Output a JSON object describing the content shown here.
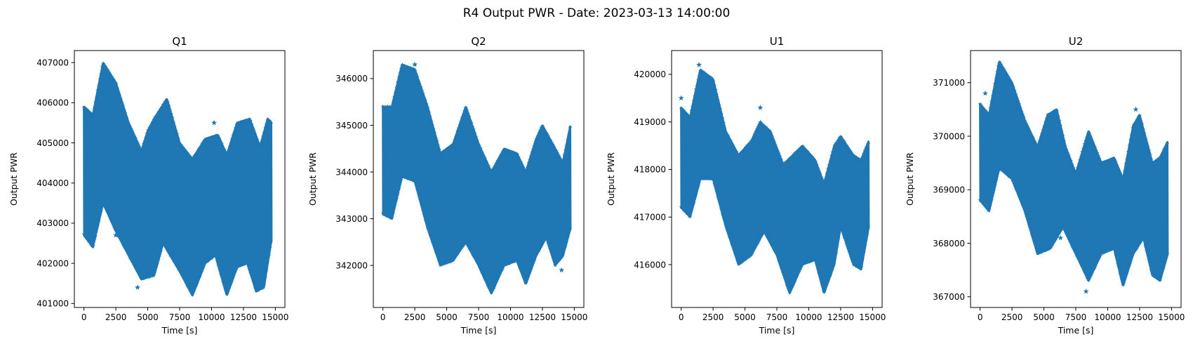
{
  "figure": {
    "title": "R4 Output PWR - Date: 2023-03-13 14:00:00",
    "marker_color": "#1f77b4"
  },
  "chart_data": [
    {
      "type": "scatter",
      "title": "Q1",
      "xlabel": "Time [s]",
      "ylabel": "Output PWR",
      "xlim": [
        -750,
        15750
      ],
      "ylim": [
        400900,
        407300
      ],
      "xticks": [
        0,
        2500,
        5000,
        7500,
        10000,
        12500,
        15000
      ],
      "yticks": [
        401000,
        402000,
        403000,
        404000,
        405000,
        406000,
        407000
      ],
      "series": [
        {
          "upper_envelope": [
            [
              0,
              405900
            ],
            [
              700,
              405700
            ],
            [
              1500,
              407000
            ],
            [
              2500,
              406500
            ],
            [
              3500,
              405500
            ],
            [
              4500,
              404800
            ],
            [
              5000,
              405300
            ],
            [
              5500,
              405600
            ],
            [
              6500,
              406100
            ],
            [
              7500,
              405000
            ],
            [
              8500,
              404600
            ],
            [
              9500,
              405100
            ],
            [
              10500,
              405200
            ],
            [
              11200,
              404700
            ],
            [
              12000,
              405500
            ],
            [
              13000,
              405600
            ],
            [
              13800,
              404900
            ],
            [
              14400,
              405600
            ],
            [
              14700,
              405500
            ]
          ],
          "lower_envelope": [
            [
              0,
              402700
            ],
            [
              700,
              402400
            ],
            [
              1500,
              403500
            ],
            [
              2500,
              402800
            ],
            [
              3500,
              402200
            ],
            [
              4500,
              401600
            ],
            [
              5500,
              401700
            ],
            [
              6200,
              402500
            ],
            [
              7500,
              401800
            ],
            [
              8500,
              401200
            ],
            [
              9500,
              402000
            ],
            [
              10300,
              402200
            ],
            [
              11200,
              401200
            ],
            [
              12000,
              401900
            ],
            [
              12800,
              402000
            ],
            [
              13500,
              401300
            ],
            [
              14100,
              401400
            ],
            [
              14700,
              402600
            ]
          ],
          "outliers": [
            [
              2500,
              402700
            ],
            [
              4200,
              401400
            ],
            [
              10200,
              405500
            ]
          ]
        }
      ]
    },
    {
      "type": "scatter",
      "title": "Q2",
      "xlabel": "Time [s]",
      "ylabel": "Output PWR",
      "xlim": [
        -750,
        15750
      ],
      "ylim": [
        341100,
        346600
      ],
      "xticks": [
        0,
        2500,
        5000,
        7500,
        10000,
        12500,
        15000
      ],
      "yticks": [
        342000,
        343000,
        344000,
        345000,
        346000
      ],
      "series": [
        {
          "upper_envelope": [
            [
              0,
              345400
            ],
            [
              700,
              345400
            ],
            [
              1500,
              346300
            ],
            [
              2500,
              346200
            ],
            [
              3500,
              345400
            ],
            [
              4500,
              344400
            ],
            [
              5500,
              344600
            ],
            [
              6500,
              345400
            ],
            [
              7500,
              344600
            ],
            [
              8500,
              344000
            ],
            [
              9500,
              344500
            ],
            [
              10500,
              344400
            ],
            [
              11200,
              344000
            ],
            [
              12000,
              344700
            ],
            [
              12500,
              345000
            ],
            [
              13500,
              344500
            ],
            [
              14100,
              344200
            ],
            [
              14700,
              345000
            ]
          ],
          "lower_envelope": [
            [
              0,
              343100
            ],
            [
              700,
              343000
            ],
            [
              1500,
              343900
            ],
            [
              2500,
              343800
            ],
            [
              3500,
              342800
            ],
            [
              4500,
              342000
            ],
            [
              5500,
              342100
            ],
            [
              6500,
              342500
            ],
            [
              7500,
              342000
            ],
            [
              8500,
              341400
            ],
            [
              9500,
              342000
            ],
            [
              10500,
              342100
            ],
            [
              11200,
              341600
            ],
            [
              12000,
              342200
            ],
            [
              12800,
              342600
            ],
            [
              13500,
              342000
            ],
            [
              14100,
              342200
            ],
            [
              14700,
              342800
            ]
          ],
          "outliers": [
            [
              2500,
              346300
            ],
            [
              14000,
              341900
            ]
          ]
        }
      ]
    },
    {
      "type": "scatter",
      "title": "U1",
      "xlabel": "Time [s]",
      "ylabel": "Output PWR",
      "xlim": [
        -750,
        15750
      ],
      "ylim": [
        415100,
        420500
      ],
      "xticks": [
        0,
        2500,
        5000,
        7500,
        10000,
        12500,
        15000
      ],
      "yticks": [
        416000,
        417000,
        418000,
        419000,
        420000
      ],
      "series": [
        {
          "upper_envelope": [
            [
              0,
              419300
            ],
            [
              700,
              419100
            ],
            [
              1500,
              420100
            ],
            [
              2500,
              419900
            ],
            [
              3500,
              418800
            ],
            [
              4500,
              418300
            ],
            [
              5500,
              418600
            ],
            [
              6200,
              419000
            ],
            [
              7000,
              418800
            ],
            [
              8000,
              418100
            ],
            [
              9500,
              418500
            ],
            [
              10500,
              418200
            ],
            [
              11200,
              417700
            ],
            [
              12000,
              418500
            ],
            [
              12500,
              418700
            ],
            [
              13500,
              418300
            ],
            [
              14100,
              418200
            ],
            [
              14700,
              418600
            ]
          ],
          "lower_envelope": [
            [
              0,
              417200
            ],
            [
              700,
              417000
            ],
            [
              1500,
              417800
            ],
            [
              2500,
              417800
            ],
            [
              3500,
              416800
            ],
            [
              4500,
              416000
            ],
            [
              5500,
              416200
            ],
            [
              6500,
              416700
            ],
            [
              7500,
              416200
            ],
            [
              8500,
              415400
            ],
            [
              9500,
              416000
            ],
            [
              10500,
              416100
            ],
            [
              11200,
              415400
            ],
            [
              12000,
              416000
            ],
            [
              12500,
              416800
            ],
            [
              13500,
              416000
            ],
            [
              14100,
              415900
            ],
            [
              14700,
              416800
            ]
          ],
          "outliers": [
            [
              0,
              419500
            ],
            [
              1400,
              420200
            ],
            [
              6200,
              419300
            ]
          ]
        }
      ]
    },
    {
      "type": "scatter",
      "title": "U2",
      "xlabel": "Time [s]",
      "ylabel": "Output PWR",
      "xlim": [
        -750,
        15750
      ],
      "ylim": [
        366800,
        371600
      ],
      "xticks": [
        0,
        2500,
        5000,
        7500,
        10000,
        12500,
        15000
      ],
      "yticks": [
        367000,
        368000,
        369000,
        370000,
        371000
      ],
      "series": [
        {
          "upper_envelope": [
            [
              0,
              370600
            ],
            [
              700,
              370400
            ],
            [
              1500,
              371400
            ],
            [
              2500,
              371000
            ],
            [
              3500,
              370300
            ],
            [
              4500,
              369800
            ],
            [
              5300,
              370400
            ],
            [
              6000,
              370500
            ],
            [
              6700,
              369800
            ],
            [
              7500,
              369300
            ],
            [
              8500,
              370100
            ],
            [
              9500,
              369500
            ],
            [
              10500,
              369600
            ],
            [
              11200,
              369200
            ],
            [
              12000,
              370200
            ],
            [
              12500,
              370400
            ],
            [
              13500,
              369500
            ],
            [
              14100,
              369600
            ],
            [
              14700,
              369900
            ]
          ],
          "lower_envelope": [
            [
              0,
              368800
            ],
            [
              700,
              368600
            ],
            [
              1500,
              369400
            ],
            [
              2500,
              369200
            ],
            [
              3500,
              368600
            ],
            [
              4500,
              367800
            ],
            [
              5500,
              367900
            ],
            [
              6500,
              368300
            ],
            [
              7500,
              367800
            ],
            [
              8500,
              367300
            ],
            [
              9500,
              367800
            ],
            [
              10500,
              367900
            ],
            [
              11200,
              367200
            ],
            [
              12000,
              367800
            ],
            [
              12800,
              368100
            ],
            [
              13500,
              367400
            ],
            [
              14100,
              367300
            ],
            [
              14700,
              367800
            ]
          ],
          "outliers": [
            [
              400,
              370800
            ],
            [
              2000,
              369400
            ],
            [
              6300,
              368100
            ],
            [
              8300,
              367100
            ],
            [
              12200,
              370500
            ]
          ]
        }
      ]
    }
  ]
}
